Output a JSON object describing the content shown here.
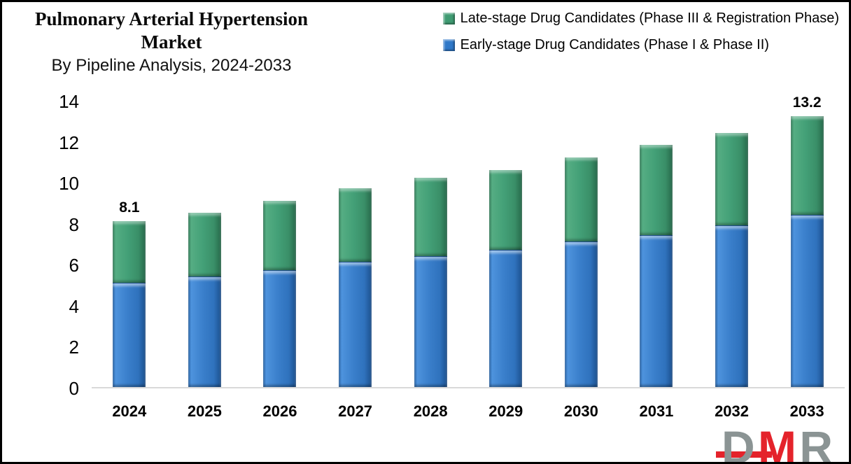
{
  "title": {
    "line1": "Pulmonary Arterial Hypertension",
    "line2": "Market",
    "subtitle": "By Pipeline Analysis, 2024-2033"
  },
  "legend": [
    {
      "label": "Late-stage Drug Candidates (Phase III & Registration Phase)",
      "color": "#3f9b72"
    },
    {
      "label": "Early-stage Drug Candidates (Phase I & Phase II)",
      "color": "#2f78c8"
    }
  ],
  "chart_data": {
    "type": "bar",
    "stacked": true,
    "title": "Pulmonary Arterial Hypertension Market By Pipeline Analysis, 2024-2033",
    "categories": [
      "2024",
      "2025",
      "2026",
      "2027",
      "2028",
      "2029",
      "2030",
      "2031",
      "2032",
      "2033"
    ],
    "series": [
      {
        "name": "Early-stage Drug Candidates (Phase I & Phase II)",
        "color": "#2f78c8",
        "values": [
          5.1,
          5.4,
          5.7,
          6.1,
          6.4,
          6.7,
          7.1,
          7.4,
          7.9,
          8.4
        ]
      },
      {
        "name": "Late-stage Drug Candidates (Phase III & Registration Phase)",
        "color": "#3f9b72",
        "values": [
          3.0,
          3.1,
          3.4,
          3.6,
          3.8,
          3.9,
          4.1,
          4.4,
          4.5,
          4.8
        ]
      }
    ],
    "totals": [
      8.1,
      8.5,
      9.1,
      9.7,
      10.2,
      10.6,
      11.2,
      11.8,
      12.4,
      13.2
    ],
    "data_labels": {
      "2024": "8.1",
      "2033": "13.2"
    },
    "xlabel": "",
    "ylabel": "",
    "ylim": [
      0,
      14
    ],
    "y_ticks": [
      "0",
      "2",
      "4",
      "6",
      "8",
      "10",
      "12",
      "14"
    ],
    "grid": false,
    "legend_position": "top-right",
    "axis_line_color": "#d9d9d9"
  },
  "logo": {
    "letters": [
      {
        "char": "D",
        "color": "#8b9494"
      },
      {
        "char": "M",
        "color": "#e4232b"
      },
      {
        "char": "R",
        "color": "#8b9494"
      }
    ],
    "bar_color": "#e4232b"
  }
}
